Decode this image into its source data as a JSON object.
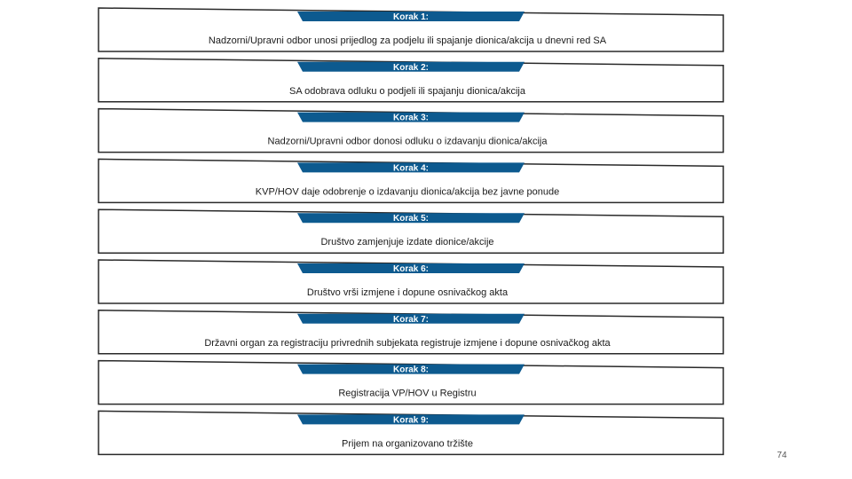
{
  "colors": {
    "outline": "#2a2a2a",
    "header_fill": "#0d5a8f",
    "header_text": "#ffffff",
    "body_text": "#1a1a1a"
  },
  "steps": [
    {
      "header": "Korak 1:",
      "text": "Nadzorni/Upravni odbor unosi prijedlog za podjelu ili spajanje dionica/akcija u dnevni red SA"
    },
    {
      "header": "Korak 2:",
      "text": "SA odobrava odluku o podjeli ili spajanju dionica/akcija"
    },
    {
      "header": "Korak 3:",
      "text": "Nadzorni/Upravni odbor donosi odluku o izdavanju dionica/akcija"
    },
    {
      "header": "Korak 4:",
      "text": "KVP/HOV daje odobrenje o izdavanju dionica/akcija bez javne ponude"
    },
    {
      "header": "Korak 5:",
      "text": "Društvo zamjenjuje izdate dionice/akcije"
    },
    {
      "header": "Korak 6:",
      "text": "Društvo vrši izmjene i dopune osnivačkog akta"
    },
    {
      "header": "Korak 7:",
      "text": "Državni organ za registraciju privrednih subjekata registruje izmjene i dopune osnivačkog akta"
    },
    {
      "header": "Korak 8:",
      "text": "Registracija VP/HOV u Registru"
    },
    {
      "header": "Korak 9:",
      "text": "Prijem na organizovano tržište"
    }
  ],
  "slide_number": "74"
}
